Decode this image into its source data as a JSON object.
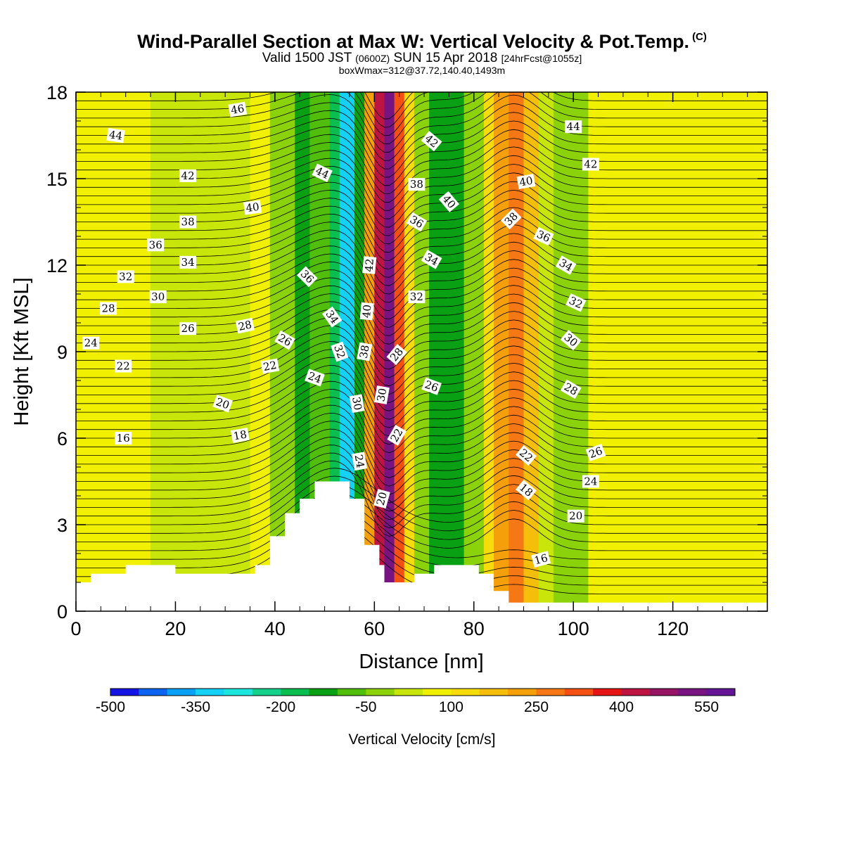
{
  "header": {
    "title": "Wind-Parallel Section at Max W: Vertical Velocity & Pot.Temp.",
    "copyright": "(C)",
    "subtitle_a": "Valid 1500 JST",
    "subtitle_b": "(0600Z)",
    "subtitle_c": "SUN 15 Apr 2018",
    "subtitle_d": "[24hrFcst@1055z]",
    "box_line": "boxWmax=312@37.72,140.40,1493m"
  },
  "chart_data": {
    "type": "heatmap",
    "xlabel": "Distance [nm]",
    "ylabel": "Height [Kft MSL]",
    "xlim": [
      0,
      139
    ],
    "ylim": [
      0,
      18
    ],
    "x_ticks": [
      "0",
      "20",
      "40",
      "60",
      "80",
      "100",
      "120"
    ],
    "y_ticks": [
      "0",
      "3",
      "6",
      "9",
      "12",
      "15",
      "18"
    ],
    "colorbar": {
      "title": "Vertical Velocity [cm/s]",
      "tick_labels": [
        "-500",
        "-350",
        "-200",
        "-50",
        "100",
        "250",
        "400",
        "550"
      ],
      "colors": [
        "#1414e6",
        "#0a64f0",
        "#0aa0f5",
        "#14d2f5",
        "#1ee6dc",
        "#14d28c",
        "#0abe50",
        "#0aa014",
        "#50be0a",
        "#8cd20a",
        "#c8e60a",
        "#f0f000",
        "#f5dc0a",
        "#f5be0a",
        "#f5a00a",
        "#f57814",
        "#f55014",
        "#e61414",
        "#be1441",
        "#961464",
        "#781482",
        "#641496"
      ]
    },
    "vertical_velocity_bands": [
      {
        "x0": 0,
        "x1": 15,
        "w": 0
      },
      {
        "x0": 15,
        "x1": 35,
        "w": -40
      },
      {
        "x0": 35,
        "x1": 39,
        "w": 20
      },
      {
        "x0": 39,
        "x1": 44,
        "w": -80
      },
      {
        "x0": 44,
        "x1": 47,
        "w": -180
      },
      {
        "x0": 47,
        "x1": 51,
        "w": -120
      },
      {
        "x0": 51,
        "x1": 53,
        "w": -250
      },
      {
        "x0": 53,
        "x1": 56,
        "w": -360
      },
      {
        "x0": 56,
        "x1": 58,
        "w": -200
      },
      {
        "x0": 58,
        "x1": 60,
        "w": 150
      },
      {
        "x0": 60,
        "x1": 62,
        "w": 380
      },
      {
        "x0": 62,
        "x1": 64,
        "w": 480
      },
      {
        "x0": 64,
        "x1": 66,
        "w": 250
      },
      {
        "x0": 66,
        "x1": 68,
        "w": 60
      },
      {
        "x0": 68,
        "x1": 71,
        "w": -60
      },
      {
        "x0": 71,
        "x1": 78,
        "w": -160
      },
      {
        "x0": 78,
        "x1": 82,
        "w": -100
      },
      {
        "x0": 82,
        "x1": 84,
        "w": 50
      },
      {
        "x0": 84,
        "x1": 87,
        "w": 170
      },
      {
        "x0": 87,
        "x1": 90,
        "w": 210
      },
      {
        "x0": 90,
        "x1": 93,
        "w": 120
      },
      {
        "x0": 93,
        "x1": 96,
        "w": -20
      },
      {
        "x0": 96,
        "x1": 103,
        "w": -70
      },
      {
        "x0": 103,
        "x1": 139,
        "w": 10
      }
    ],
    "terrain": [
      [
        0,
        1.0
      ],
      [
        3,
        1.0
      ],
      [
        3,
        1.3
      ],
      [
        10,
        1.3
      ],
      [
        10,
        1.6
      ],
      [
        20,
        1.6
      ],
      [
        20,
        1.3
      ],
      [
        36,
        1.3
      ],
      [
        36,
        1.6
      ],
      [
        39,
        1.6
      ],
      [
        39,
        2.6
      ],
      [
        42,
        2.6
      ],
      [
        42,
        3.4
      ],
      [
        45,
        3.4
      ],
      [
        45,
        3.9
      ],
      [
        48,
        3.9
      ],
      [
        48,
        4.5
      ],
      [
        55,
        4.5
      ],
      [
        55,
        3.9
      ],
      [
        58,
        3.9
      ],
      [
        58,
        2.3
      ],
      [
        61,
        2.3
      ],
      [
        61,
        1.6
      ],
      [
        62,
        1.6
      ],
      [
        62,
        1.0
      ],
      [
        68,
        1.0
      ],
      [
        68,
        1.3
      ],
      [
        72,
        1.3
      ],
      [
        72,
        1.6
      ],
      [
        81,
        1.6
      ],
      [
        81,
        1.3
      ],
      [
        84,
        1.3
      ],
      [
        84,
        0.7
      ],
      [
        87,
        0.7
      ],
      [
        87,
        0.3
      ],
      [
        139,
        0.3
      ]
    ],
    "theta_labels": [
      {
        "text": "46",
        "x": 32.5,
        "y": 17.4,
        "angle": -10
      },
      {
        "text": "44",
        "x": 8,
        "y": 16.5,
        "angle": 8
      },
      {
        "text": "42",
        "x": 22.5,
        "y": 15.1,
        "angle": 0
      },
      {
        "text": "40",
        "x": 35.5,
        "y": 14.0,
        "angle": -8
      },
      {
        "text": "38",
        "x": 22.5,
        "y": 13.5,
        "angle": 0
      },
      {
        "text": "36",
        "x": 16,
        "y": 12.7,
        "angle": 0
      },
      {
        "text": "34",
        "x": 22.5,
        "y": 12.1,
        "angle": 0
      },
      {
        "text": "32",
        "x": 10,
        "y": 11.6,
        "angle": 0
      },
      {
        "text": "30",
        "x": 16.5,
        "y": 10.9,
        "angle": 0
      },
      {
        "text": "28",
        "x": 6.5,
        "y": 10.5,
        "angle": 0
      },
      {
        "text": "26",
        "x": 22.5,
        "y": 9.8,
        "angle": 0
      },
      {
        "text": "24",
        "x": 3,
        "y": 9.3,
        "angle": 0
      },
      {
        "text": "22",
        "x": 9.5,
        "y": 8.5,
        "angle": 0
      },
      {
        "text": "20",
        "x": 29.5,
        "y": 7.2,
        "angle": 20
      },
      {
        "text": "18",
        "x": 33,
        "y": 6.1,
        "angle": -10
      },
      {
        "text": "16",
        "x": 9.5,
        "y": 6.0,
        "angle": 0
      },
      {
        "text": "28",
        "x": 34,
        "y": 9.9,
        "angle": -12
      },
      {
        "text": "26",
        "x": 42,
        "y": 9.4,
        "angle": 30
      },
      {
        "text": "22",
        "x": 39,
        "y": 8.5,
        "angle": -10
      },
      {
        "text": "24",
        "x": 48,
        "y": 8.1,
        "angle": 20
      },
      {
        "text": "44",
        "x": 49.5,
        "y": 15.2,
        "angle": 25
      },
      {
        "text": "36",
        "x": 46.5,
        "y": 11.6,
        "angle": 45
      },
      {
        "text": "34",
        "x": 51.5,
        "y": 10.2,
        "angle": 55
      },
      {
        "text": "32",
        "x": 53,
        "y": 9.0,
        "angle": 70
      },
      {
        "text": "30",
        "x": 56.5,
        "y": 7.2,
        "angle": 80
      },
      {
        "text": "24",
        "x": 57,
        "y": 5.2,
        "angle": 80
      },
      {
        "text": "42",
        "x": 59,
        "y": 12.0,
        "angle": -85
      },
      {
        "text": "40",
        "x": 58.5,
        "y": 10.4,
        "angle": -85
      },
      {
        "text": "38",
        "x": 58,
        "y": 9.0,
        "angle": -80
      },
      {
        "text": "30",
        "x": 61.5,
        "y": 7.5,
        "angle": -80
      },
      {
        "text": "28",
        "x": 64.5,
        "y": 8.9,
        "angle": -50
      },
      {
        "text": "22",
        "x": 64.5,
        "y": 6.1,
        "angle": -60
      },
      {
        "text": "20",
        "x": 61.5,
        "y": 3.9,
        "angle": -75
      },
      {
        "text": "38",
        "x": 68.5,
        "y": 14.8,
        "angle": 0
      },
      {
        "text": "36",
        "x": 68.5,
        "y": 13.5,
        "angle": 30
      },
      {
        "text": "34",
        "x": 71.5,
        "y": 12.2,
        "angle": 30
      },
      {
        "text": "32",
        "x": 68.5,
        "y": 10.9,
        "angle": 0
      },
      {
        "text": "26",
        "x": 71.5,
        "y": 7.8,
        "angle": 20
      },
      {
        "text": "42",
        "x": 71.5,
        "y": 16.3,
        "angle": 40
      },
      {
        "text": "40",
        "x": 75,
        "y": 14.2,
        "angle": 50
      },
      {
        "text": "40",
        "x": 90.5,
        "y": 14.9,
        "angle": -10
      },
      {
        "text": "38",
        "x": 87.5,
        "y": 13.6,
        "angle": -45
      },
      {
        "text": "36",
        "x": 94,
        "y": 13.0,
        "angle": 25
      },
      {
        "text": "34",
        "x": 98.5,
        "y": 12.0,
        "angle": 30
      },
      {
        "text": "32",
        "x": 100.5,
        "y": 10.7,
        "angle": 25
      },
      {
        "text": "30",
        "x": 99.5,
        "y": 9.4,
        "angle": 40
      },
      {
        "text": "28",
        "x": 99.5,
        "y": 7.7,
        "angle": 30
      },
      {
        "text": "26",
        "x": 104.5,
        "y": 5.5,
        "angle": -20
      },
      {
        "text": "24",
        "x": 103.5,
        "y": 4.5,
        "angle": 0
      },
      {
        "text": "22",
        "x": 90.5,
        "y": 5.4,
        "angle": 40
      },
      {
        "text": "18",
        "x": 90.5,
        "y": 4.2,
        "angle": 40
      },
      {
        "text": "20",
        "x": 100.5,
        "y": 3.3,
        "angle": 0
      },
      {
        "text": "16",
        "x": 93.5,
        "y": 1.8,
        "angle": -15
      },
      {
        "text": "44",
        "x": 100,
        "y": 16.8,
        "angle": 0
      },
      {
        "text": "42",
        "x": 103.5,
        "y": 15.5,
        "angle": 0
      }
    ]
  }
}
